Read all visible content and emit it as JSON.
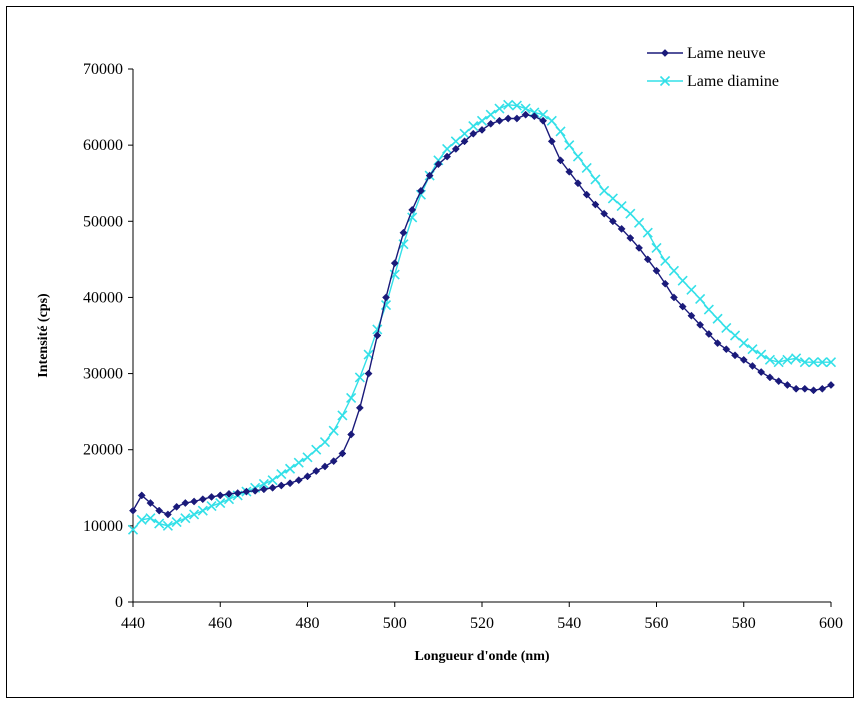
{
  "chart_data": {
    "type": "line",
    "title": "",
    "xlabel": "Longueur d'onde (nm)",
    "ylabel": "Intensité (cps)",
    "xlim": [
      440,
      600
    ],
    "ylim": [
      0,
      70000
    ],
    "xticks": [
      440,
      460,
      480,
      500,
      520,
      540,
      560,
      580,
      600
    ],
    "yticks": [
      0,
      10000,
      20000,
      30000,
      40000,
      50000,
      60000,
      70000
    ],
    "grid": false,
    "legend": "top-right",
    "series": [
      {
        "name": "Lame neuve",
        "color": "#1a1a7a",
        "marker": "diamond",
        "x": [
          440,
          442,
          444,
          446,
          448,
          450,
          452,
          454,
          456,
          458,
          460,
          462,
          464,
          466,
          468,
          470,
          472,
          474,
          476,
          478,
          480,
          482,
          484,
          486,
          488,
          490,
          492,
          494,
          496,
          498,
          500,
          502,
          504,
          506,
          508,
          510,
          512,
          514,
          516,
          518,
          520,
          522,
          524,
          526,
          528,
          530,
          532,
          534,
          536,
          538,
          540,
          542,
          544,
          546,
          548,
          550,
          552,
          554,
          556,
          558,
          560,
          562,
          564,
          566,
          568,
          570,
          572,
          574,
          576,
          578,
          580,
          582,
          584,
          586,
          588,
          590,
          592,
          594,
          596,
          598,
          600
        ],
        "y": [
          12000,
          14000,
          13000,
          12000,
          11500,
          12500,
          13000,
          13200,
          13500,
          13800,
          14000,
          14200,
          14300,
          14500,
          14600,
          14800,
          15000,
          15300,
          15600,
          16000,
          16500,
          17200,
          17800,
          18500,
          19500,
          22000,
          25500,
          30000,
          35000,
          40000,
          44500,
          48500,
          51500,
          54000,
          56000,
          57500,
          58500,
          59500,
          60500,
          61500,
          62000,
          62800,
          63200,
          63500,
          63500,
          64000,
          63800,
          63200,
          60500,
          58000,
          56500,
          55000,
          53500,
          52200,
          51000,
          50000,
          49000,
          47800,
          46500,
          45000,
          43500,
          41800,
          40000,
          38800,
          37600,
          36400,
          35200,
          34000,
          33200,
          32400,
          31800,
          31000,
          30200,
          29500,
          29000,
          28500,
          28000,
          28000,
          27800,
          28000,
          28500
        ]
      },
      {
        "name": "Lame diamine",
        "color": "#33e0e8",
        "marker": "x",
        "x": [
          440,
          442,
          444,
          446,
          448,
          450,
          452,
          454,
          456,
          458,
          460,
          462,
          464,
          466,
          468,
          470,
          472,
          474,
          476,
          478,
          480,
          482,
          484,
          486,
          488,
          490,
          492,
          494,
          496,
          498,
          500,
          502,
          504,
          506,
          508,
          510,
          512,
          514,
          516,
          518,
          520,
          522,
          524,
          526,
          528,
          530,
          532,
          534,
          536,
          538,
          540,
          542,
          544,
          546,
          548,
          550,
          552,
          554,
          556,
          558,
          560,
          562,
          564,
          566,
          568,
          570,
          572,
          574,
          576,
          578,
          580,
          582,
          584,
          586,
          588,
          590,
          592,
          594,
          596,
          598,
          600
        ],
        "y": [
          9500,
          10800,
          11000,
          10300,
          10000,
          10500,
          11000,
          11500,
          12000,
          12600,
          13000,
          13500,
          14000,
          14500,
          15000,
          15500,
          16000,
          16800,
          17500,
          18300,
          19000,
          20000,
          21000,
          22500,
          24500,
          26800,
          29500,
          32500,
          35800,
          39000,
          43000,
          47000,
          50500,
          53500,
          56000,
          58000,
          59500,
          60500,
          61500,
          62500,
          63200,
          64000,
          64800,
          65300,
          65200,
          64800,
          64300,
          64000,
          63200,
          61800,
          60000,
          58500,
          57000,
          55500,
          54000,
          53000,
          52000,
          51000,
          49800,
          48500,
          46500,
          44800,
          43500,
          42200,
          41000,
          39800,
          38400,
          37200,
          36000,
          35000,
          34000,
          33200,
          32500,
          31800,
          31500,
          31800,
          32000,
          31500,
          31500,
          31500,
          31500
        ]
      }
    ]
  }
}
